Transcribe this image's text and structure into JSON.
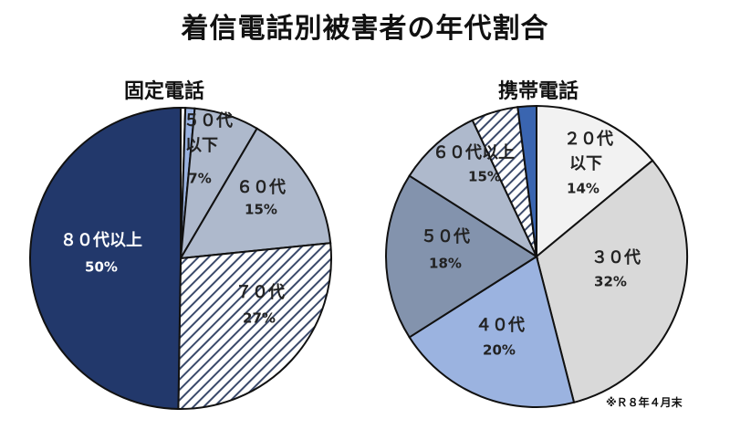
{
  "title": "着信電話別被害者の年代割合",
  "footnote": "※Ｒ８年４月末",
  "colors": {
    "navy": "#22386b",
    "blue": "#3a65b0",
    "light_blue": "#9bb3e0",
    "steel": "#8393ad",
    "gray_blue": "#aeb9cc",
    "light_gray": "#d9d9d9",
    "near_white": "#f2f2f2",
    "hatch_line": "#3b4a6b"
  },
  "chart_data": [
    {
      "type": "pie",
      "title": "固定電話",
      "slices": [
        {
          "name": "",
          "value": 0.5,
          "fill": "near_white",
          "labels": []
        },
        {
          "name": "",
          "value": 1.0,
          "fill": "light_blue",
          "labels": []
        },
        {
          "name": "５０代以下",
          "value": 7,
          "fill": "gray_blue",
          "labels": [
            "５０代",
            "以下",
            "7%"
          ]
        },
        {
          "name": "６０代",
          "value": 15,
          "fill": "gray_blue",
          "labels": [
            "６０代",
            "15%"
          ]
        },
        {
          "name": "７０代",
          "value": 27,
          "fill": "hatch",
          "labels": [
            "７０代",
            "27%"
          ]
        },
        {
          "name": "８０代以上",
          "value": 50,
          "fill": "navy",
          "labels": [
            "８０代以上",
            "50%"
          ]
        }
      ]
    },
    {
      "type": "pie",
      "title": "携帯電話",
      "slices": [
        {
          "name": "２０代以下",
          "value": 14,
          "fill": "near_white",
          "labels": [
            "２０代",
            "以下",
            "14%"
          ]
        },
        {
          "name": "３０代",
          "value": 32,
          "fill": "light_gray",
          "labels": [
            "３０代",
            "32%"
          ]
        },
        {
          "name": "４０代",
          "value": 20,
          "fill": "light_blue",
          "labels": [
            "４０代",
            "20%"
          ]
        },
        {
          "name": "５０代",
          "value": 18,
          "fill": "steel",
          "labels": [
            "５０代",
            "18%"
          ]
        },
        {
          "name": "６０代",
          "value": 9,
          "fill": "gray_blue",
          "labels": []
        },
        {
          "name": "６０代以上",
          "value": 5,
          "fill": "hatch",
          "labels": [
            "６０代以上",
            "15%"
          ]
        },
        {
          "name": "",
          "value": 2,
          "fill": "blue",
          "labels": []
        }
      ]
    }
  ]
}
